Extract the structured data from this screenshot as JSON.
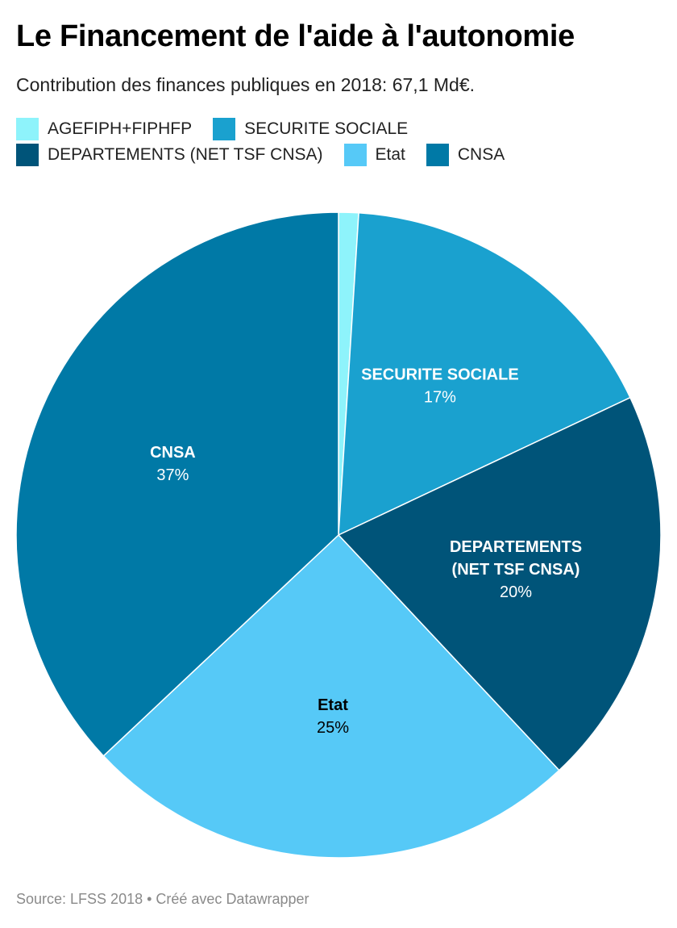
{
  "title": "Le Financement de l'aide à l'autonomie",
  "subtitle": "Contribution des finances publiques en 2018: 67,1 Md€.",
  "source": "Source: LFSS 2018 • Créé avec Datawrapper",
  "legend": [
    {
      "label": "AGEFIPH+FIPHFP",
      "color": "#8ef3fb"
    },
    {
      "label": "SECURITE SOCIALE",
      "color": "#1aa1cf"
    },
    {
      "label": "DEPARTEMENTS (NET TSF CNSA)",
      "color": "#005479"
    },
    {
      "label": "Etat",
      "color": "#56c9f7"
    },
    {
      "label": "CNSA",
      "color": "#0079a6"
    }
  ],
  "chart_data": {
    "type": "pie",
    "title": "Le Financement de l'aide à l'autonomie",
    "total_label": "67,1 Md€",
    "slices": [
      {
        "name": "AGEFIPH+FIPHFP",
        "value": 1,
        "color": "#8ef3fb",
        "label_lines": [],
        "pct_label": "",
        "label_color": "#ffffff"
      },
      {
        "name": "SECURITE SOCIALE",
        "value": 17,
        "color": "#1aa1cf",
        "label_lines": [
          "SECURITE SOCIALE"
        ],
        "pct_label": "17%",
        "label_color": "#ffffff"
      },
      {
        "name": "DEPARTEMENTS (NET TSF CNSA)",
        "value": 20,
        "color": "#005479",
        "label_lines": [
          "DEPARTEMENTS",
          "(NET TSF CNSA)"
        ],
        "pct_label": "20%",
        "label_color": "#ffffff"
      },
      {
        "name": "Etat",
        "value": 25,
        "color": "#56c9f7",
        "label_lines": [
          "Etat"
        ],
        "pct_label": "25%",
        "label_color": "#000000"
      },
      {
        "name": "CNSA",
        "value": 37,
        "color": "#0079a6",
        "label_lines": [
          "CNSA"
        ],
        "pct_label": "37%",
        "label_color": "#ffffff"
      }
    ]
  }
}
